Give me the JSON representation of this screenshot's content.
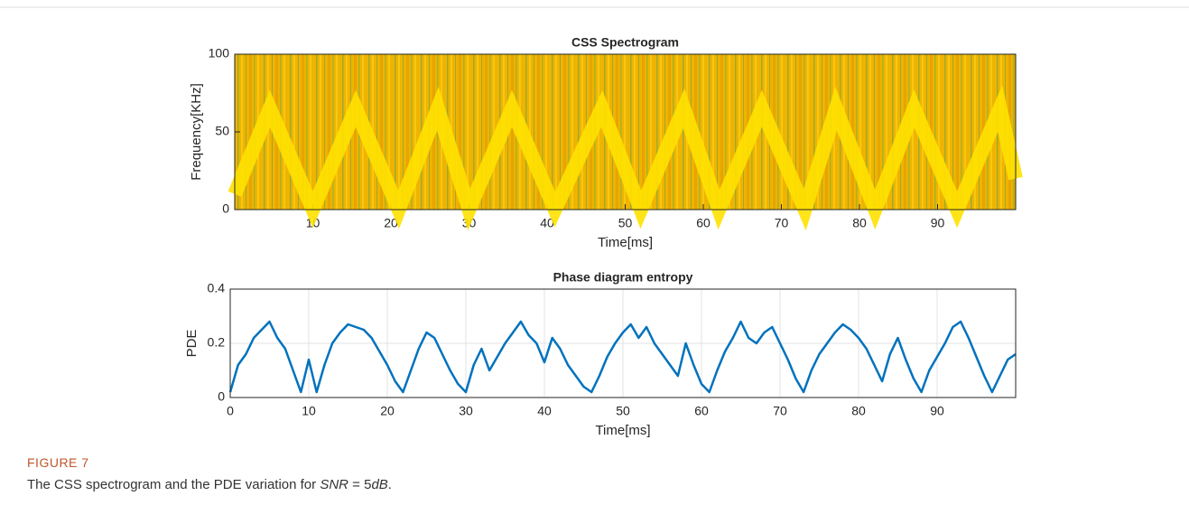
{
  "chart_data": [
    {
      "type": "spectrogram",
      "title": "CSS Spectrogram",
      "x_label": "Time[ms]",
      "y_label": "Frequency[KHz]",
      "x": [
        0,
        4.5,
        10,
        15.5,
        21,
        26,
        30,
        35.5,
        41,
        47,
        52,
        57.5,
        62,
        67.5,
        73,
        77,
        82,
        87,
        92.5,
        98,
        100
      ],
      "values": [
        10,
        65,
        0,
        65,
        0,
        65,
        0,
        65,
        0,
        65,
        0,
        65,
        0,
        65,
        0,
        65,
        0,
        65,
        0,
        65,
        20
      ],
      "color": "#ffe100",
      "background": "#efb400",
      "xlim": [
        0,
        100
      ],
      "ylim": [
        0,
        100
      ],
      "xticks": [
        10,
        20,
        30,
        40,
        50,
        60,
        70,
        80,
        90
      ],
      "yticks": [
        0,
        50,
        100
      ],
      "grid": false
    },
    {
      "type": "line",
      "title": "Phase diagram entropy",
      "x_label": "Time[ms]",
      "y_label": "PDE",
      "x": [
        0,
        1,
        2,
        3,
        4,
        5,
        6,
        7,
        8,
        9,
        10,
        11,
        12,
        13,
        14,
        15,
        16,
        17,
        18,
        19,
        20,
        21,
        22,
        23,
        24,
        25,
        26,
        27,
        28,
        29,
        30,
        31,
        32,
        33,
        34,
        35,
        36,
        37,
        38,
        39,
        40,
        41,
        42,
        43,
        44,
        45,
        46,
        47,
        48,
        49,
        50,
        51,
        52,
        53,
        54,
        55,
        56,
        57,
        58,
        59,
        60,
        61,
        62,
        63,
        64,
        65,
        66,
        67,
        68,
        69,
        70,
        71,
        72,
        73,
        74,
        75,
        76,
        77,
        78,
        79,
        80,
        81,
        82,
        83,
        84,
        85,
        86,
        87,
        88,
        89,
        90,
        91,
        92,
        93,
        94,
        95,
        96,
        97,
        98,
        99,
        100
      ],
      "values": [
        0.02,
        0.12,
        0.16,
        0.22,
        0.25,
        0.28,
        0.22,
        0.18,
        0.1,
        0.02,
        0.14,
        0.02,
        0.12,
        0.2,
        0.24,
        0.27,
        0.26,
        0.25,
        0.22,
        0.17,
        0.12,
        0.06,
        0.02,
        0.1,
        0.18,
        0.24,
        0.22,
        0.16,
        0.1,
        0.05,
        0.02,
        0.12,
        0.18,
        0.1,
        0.15,
        0.2,
        0.24,
        0.28,
        0.23,
        0.2,
        0.13,
        0.22,
        0.18,
        0.12,
        0.08,
        0.04,
        0.02,
        0.08,
        0.15,
        0.2,
        0.24,
        0.27,
        0.22,
        0.26,
        0.2,
        0.16,
        0.12,
        0.08,
        0.2,
        0.12,
        0.05,
        0.02,
        0.1,
        0.17,
        0.22,
        0.28,
        0.22,
        0.2,
        0.24,
        0.26,
        0.2,
        0.14,
        0.07,
        0.02,
        0.1,
        0.16,
        0.2,
        0.24,
        0.27,
        0.25,
        0.22,
        0.18,
        0.12,
        0.06,
        0.16,
        0.22,
        0.14,
        0.07,
        0.02,
        0.1,
        0.15,
        0.2,
        0.26,
        0.28,
        0.22,
        0.15,
        0.08,
        0.02,
        0.08,
        0.14,
        0.16
      ],
      "color": "#0072bd",
      "xlim": [
        0,
        100
      ],
      "ylim": [
        0,
        0.4
      ],
      "xticks": [
        0,
        10,
        20,
        30,
        40,
        50,
        60,
        70,
        80,
        90
      ],
      "yticks": [
        0,
        0.2,
        0.4
      ],
      "grid": true
    }
  ],
  "caption": {
    "label": "FIGURE 7",
    "text": [
      "The CSS spectrogram and the PDE variation for ",
      "SNR",
      " = 5",
      "dB",
      "."
    ]
  }
}
